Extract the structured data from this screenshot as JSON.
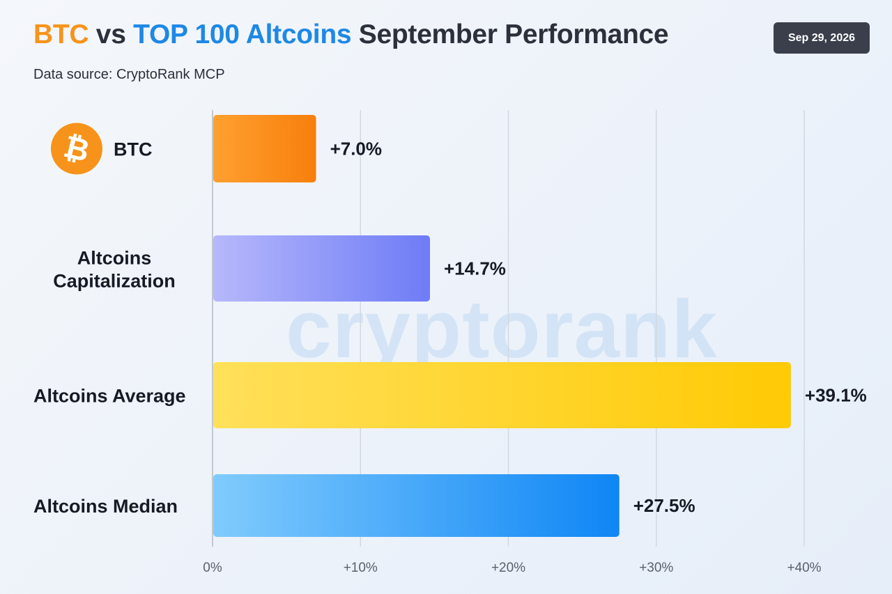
{
  "header": {
    "title_parts": [
      {
        "text": "BTC",
        "color": "#f7931a"
      },
      {
        "text": " vs ",
        "color": "#2b303b"
      },
      {
        "text": "TOP 100 Altcoins",
        "color": "#1e88e5"
      },
      {
        "text": " September Performance",
        "color": "#2b303b"
      }
    ],
    "subtitle": "Data source: CryptoRank MCP",
    "date": "Sep 29, 2026"
  },
  "watermark": "cryptorank",
  "chart_data": {
    "type": "bar",
    "orientation": "horizontal",
    "categories": [
      {
        "label_lines": [
          "BTC"
        ],
        "has_icon": true,
        "icon": "bitcoin-icon"
      },
      {
        "label_lines": [
          "Altcoins",
          "Capitalization"
        ]
      },
      {
        "label_lines": [
          "Altcoins Average"
        ]
      },
      {
        "label_lines": [
          "Altcoins Median"
        ]
      }
    ],
    "values": [
      7.0,
      14.7,
      39.1,
      27.5
    ],
    "value_labels": [
      "+7.0%",
      "+14.7%",
      "+39.1%",
      "+27.5%"
    ],
    "bar_colors": [
      [
        "#ffa030",
        "#f77f0c"
      ],
      [
        "#b7b8fb",
        "#6e7cf6"
      ],
      [
        "#ffe05a",
        "#ffca05"
      ],
      [
        "#80cbfd",
        "#0f86f5"
      ]
    ],
    "xlim": [
      0,
      40
    ],
    "ticks": [
      0,
      10,
      20,
      30,
      40
    ],
    "tick_labels": [
      "0%",
      "+10%",
      "+20%",
      "+30%",
      "+40%"
    ],
    "grid": true,
    "xlabel": "",
    "ylabel": ""
  }
}
